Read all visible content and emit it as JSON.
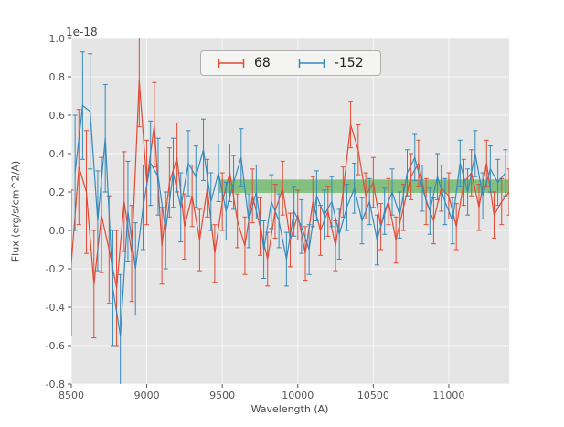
{
  "figure": {
    "offset_label": "1e-18",
    "plot_bg": "#e5e5e5",
    "grid_color": "#ffffff",
    "tick_color": "#555555"
  },
  "legend": {
    "entries": [
      {
        "label": "68",
        "color": "#e24a33"
      },
      {
        "label": "-152",
        "color": "#348abd"
      }
    ]
  },
  "chart_data": {
    "type": "line",
    "title": "",
    "xlabel": "Wavelength (A)",
    "ylabel": "Flux (erg/s/cm^2/A)",
    "y_offset_label": "1e-18",
    "xlim": [
      8500,
      11400
    ],
    "ylim": [
      -0.8,
      1.0
    ],
    "x_ticks": [
      8500,
      9000,
      9500,
      10000,
      10500,
      11000
    ],
    "y_ticks": [
      -0.8,
      -0.6,
      -0.4,
      -0.2,
      0.0,
      0.2,
      0.4,
      0.6,
      0.8,
      1.0
    ],
    "grid": true,
    "legend_position": "upper center",
    "band": {
      "x_start": 9480,
      "x_end": 11400,
      "y_low": 0.195,
      "y_high": 0.265,
      "color": "#33a02c",
      "alpha": 0.55
    },
    "series": [
      {
        "name": "68",
        "color": "#e24a33",
        "style": "errorbar",
        "x": [
          8500,
          8550,
          8600,
          8650,
          8700,
          8750,
          8800,
          8850,
          8900,
          8950,
          9000,
          9050,
          9100,
          9150,
          9200,
          9250,
          9300,
          9350,
          9400,
          9450,
          9500,
          9550,
          9600,
          9650,
          9700,
          9750,
          9800,
          9850,
          9900,
          9950,
          10000,
          10050,
          10100,
          10150,
          10200,
          10250,
          10300,
          10350,
          10400,
          10450,
          10500,
          10550,
          10600,
          10650,
          10700,
          10750,
          10800,
          10850,
          10900,
          10950,
          11000,
          11050,
          11100,
          11150,
          11200,
          11250,
          11300,
          11350,
          11400
        ],
        "y": [
          -0.17,
          0.33,
          0.2,
          -0.28,
          0.08,
          -0.1,
          -0.3,
          0.15,
          -0.12,
          0.78,
          0.25,
          0.55,
          -0.08,
          0.25,
          0.38,
          0.02,
          0.18,
          -0.05,
          0.22,
          -0.12,
          0.15,
          0.3,
          0.05,
          -0.08,
          0.18,
          0.02,
          -0.15,
          0.1,
          0.22,
          -0.05,
          0.08,
          -0.12,
          0.15,
          0.0,
          0.1,
          -0.08,
          0.2,
          0.55,
          0.42,
          0.18,
          0.25,
          0.02,
          0.15,
          -0.05,
          0.12,
          0.28,
          0.35,
          0.15,
          0.05,
          0.22,
          0.18,
          0.02,
          0.25,
          0.3,
          0.12,
          0.35,
          0.08,
          0.15,
          0.2
        ],
        "yerr": [
          0.38,
          0.3,
          0.32,
          0.28,
          0.3,
          0.28,
          0.3,
          0.26,
          0.25,
          0.24,
          0.22,
          0.22,
          0.2,
          0.18,
          0.18,
          0.17,
          0.16,
          0.16,
          0.15,
          0.15,
          0.15,
          0.15,
          0.14,
          0.15,
          0.14,
          0.15,
          0.14,
          0.14,
          0.14,
          0.14,
          0.13,
          0.14,
          0.13,
          0.13,
          0.13,
          0.13,
          0.13,
          0.12,
          0.13,
          0.12,
          0.13,
          0.12,
          0.12,
          0.12,
          0.12,
          0.12,
          0.12,
          0.12,
          0.12,
          0.12,
          0.12,
          0.12,
          0.12,
          0.12,
          0.12,
          0.12,
          0.12,
          0.12,
          0.12
        ]
      },
      {
        "name": "-152",
        "color": "#348abd",
        "style": "errorbar",
        "x": [
          8525,
          8575,
          8625,
          8675,
          8725,
          8775,
          8825,
          8875,
          8925,
          8975,
          9025,
          9075,
          9125,
          9175,
          9225,
          9275,
          9325,
          9375,
          9425,
          9475,
          9525,
          9575,
          9625,
          9675,
          9725,
          9775,
          9825,
          9875,
          9925,
          9975,
          10025,
          10075,
          10125,
          10175,
          10225,
          10275,
          10325,
          10375,
          10425,
          10475,
          10525,
          10575,
          10625,
          10675,
          10725,
          10775,
          10825,
          10875,
          10925,
          10975,
          11025,
          11075,
          11125,
          11175,
          11225,
          11275,
          11325,
          11375
        ],
        "y": [
          0.3,
          0.65,
          0.62,
          0.05,
          0.48,
          -0.3,
          -0.55,
          0.1,
          -0.2,
          0.12,
          0.35,
          0.28,
          0.0,
          0.3,
          0.12,
          0.35,
          0.28,
          0.42,
          0.15,
          0.3,
          0.1,
          0.25,
          0.38,
          0.05,
          0.2,
          -0.1,
          0.15,
          0.05,
          -0.15,
          0.1,
          0.02,
          -0.1,
          0.18,
          0.08,
          0.15,
          -0.02,
          0.12,
          0.22,
          0.05,
          0.15,
          -0.05,
          0.1,
          0.2,
          0.08,
          0.3,
          0.38,
          0.22,
          0.1,
          0.28,
          0.15,
          0.05,
          0.35,
          0.2,
          0.4,
          0.18,
          0.32,
          0.25,
          0.3
        ],
        "yerr": [
          0.3,
          0.28,
          0.3,
          0.26,
          0.28,
          0.3,
          0.32,
          0.26,
          0.24,
          0.22,
          0.22,
          0.2,
          0.2,
          0.18,
          0.18,
          0.17,
          0.16,
          0.16,
          0.15,
          0.15,
          0.15,
          0.14,
          0.15,
          0.14,
          0.14,
          0.15,
          0.14,
          0.14,
          0.14,
          0.13,
          0.14,
          0.13,
          0.13,
          0.13,
          0.13,
          0.13,
          0.12,
          0.13,
          0.12,
          0.12,
          0.13,
          0.12,
          0.12,
          0.12,
          0.12,
          0.12,
          0.12,
          0.12,
          0.12,
          0.12,
          0.12,
          0.12,
          0.12,
          0.12,
          0.12,
          0.12,
          0.12,
          0.12
        ]
      }
    ]
  }
}
